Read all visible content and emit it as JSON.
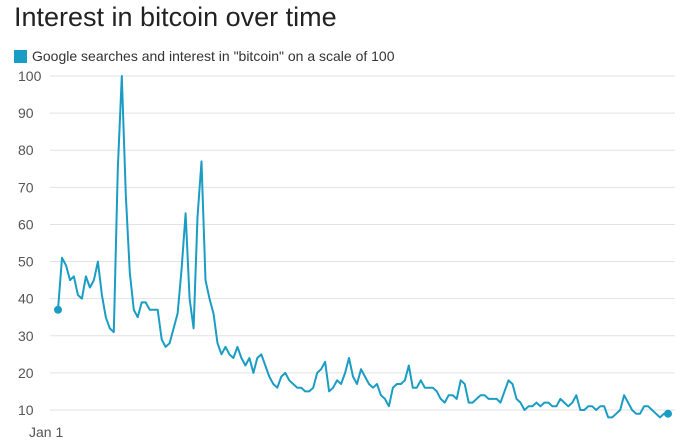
{
  "title": "Interest in bitcoin over time",
  "colors": {
    "series": "#1a9dc4",
    "grid": "#e2e2e2",
    "text": "#555555"
  },
  "chart_data": {
    "type": "line",
    "title": "Interest in bitcoin over time",
    "legend": "top-left",
    "grid": true,
    "ylim": [
      10,
      100
    ],
    "y_ticks": [
      10,
      20,
      30,
      40,
      50,
      60,
      70,
      80,
      90,
      100
    ],
    "x_ticks": [
      "Jan 1"
    ],
    "series": [
      {
        "name": "Google searches and interest in \"bitcoin\" on a scale of 100",
        "values": [
          37,
          51,
          49,
          45,
          46,
          41,
          40,
          46,
          43,
          45,
          50,
          41,
          35,
          32,
          31,
          75,
          100,
          68,
          47,
          37,
          35,
          39,
          39,
          37,
          37,
          37,
          29,
          27,
          28,
          32,
          36,
          48,
          63,
          40,
          32,
          62,
          77,
          45,
          40,
          36,
          28,
          25,
          27,
          25,
          24,
          27,
          24,
          22,
          24,
          20,
          24,
          25,
          22,
          19,
          17,
          16,
          19,
          20,
          18,
          17,
          16,
          16,
          15,
          15,
          16,
          20,
          21,
          23,
          15,
          16,
          18,
          17,
          20,
          24,
          19,
          17,
          21,
          19,
          17,
          16,
          17,
          14,
          13,
          11,
          16,
          17,
          17,
          18,
          22,
          16,
          16,
          18,
          16,
          16,
          16,
          15,
          13,
          12,
          14,
          14,
          13,
          18,
          17,
          12,
          12,
          13,
          14,
          14,
          13,
          13,
          13,
          12,
          15,
          18,
          17,
          13,
          12,
          10,
          11,
          11,
          12,
          11,
          12,
          12,
          11,
          11,
          13,
          12,
          11,
          12,
          14,
          10,
          10,
          11,
          11,
          10,
          11,
          11,
          8,
          8,
          9,
          10,
          14,
          12,
          10,
          9,
          9,
          11,
          11,
          10,
          9,
          8,
          9,
          9
        ]
      }
    ],
    "markers": "first and last point"
  }
}
